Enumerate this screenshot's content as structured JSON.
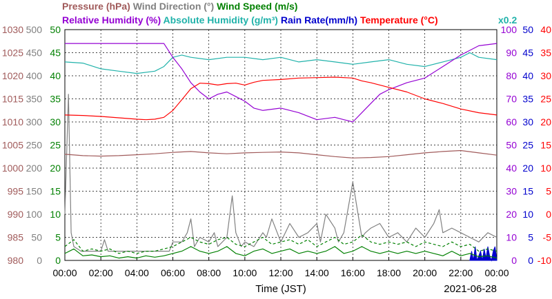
{
  "chart_data": {
    "type": "line",
    "title_parts": [
      {
        "text": "Pressure (hPa)",
        "color": "#a05a5a"
      },
      {
        "text": "Wind Direction (°)",
        "color": "#808080"
      },
      {
        "text": "Wind Speed (m/s)",
        "color": "#008000"
      }
    ],
    "title_parts_2": [
      {
        "text": "Relative Humidity (%)",
        "color": "#9400d3"
      },
      {
        "text": "Absolute Humidity (g/m³)",
        "color": "#20b2aa"
      },
      {
        "text": "Rain Rate(mm/h)",
        "color": "#0000cd"
      },
      {
        "text": "Temperature (°C)",
        "color": "#ff0000"
      }
    ],
    "corner_note": {
      "text": "x0.2",
      "color": "#20b2aa"
    },
    "xlabel": "Time (JST)",
    "date": "2021-06-28",
    "x_ticks": [
      "00:00",
      "02:00",
      "04:00",
      "06:00",
      "08:00",
      "10:00",
      "12:00",
      "14:00",
      "16:00",
      "18:00",
      "20:00",
      "22:00",
      "00:00"
    ],
    "xlim_hours": [
      0,
      24
    ],
    "grid": true,
    "left_axes": [
      {
        "name": "Pressure",
        "color": "#a05a5a",
        "ticks": [
          "1030",
          "1025",
          "1020",
          "1015",
          "1010",
          "1005",
          "1000",
          "995",
          "990",
          "985",
          "980"
        ]
      },
      {
        "name": "Wind Direction",
        "color": "#808080",
        "ticks": [
          "500",
          "450",
          "400",
          "350",
          "300",
          "250",
          "200",
          "150",
          "100",
          "50",
          "0"
        ]
      },
      {
        "name": "Wind Speed",
        "color": "#008000",
        "ticks": [
          "50",
          "45",
          "40",
          "35",
          "30",
          "25",
          "20",
          "15",
          "10",
          "5",
          "0"
        ]
      }
    ],
    "right_axes": [
      {
        "name": "Relative Humidity",
        "color": "#9400d3",
        "ticks": [
          "100",
          "90",
          "80",
          "70",
          "60",
          "50",
          "40",
          "30",
          "20",
          "10",
          "0"
        ]
      },
      {
        "name": "Rain Rate",
        "color": "#0000cd",
        "ticks": [
          "50",
          "45",
          "40",
          "35",
          "30",
          "25",
          "20",
          "15",
          "10",
          "5",
          "0"
        ]
      },
      {
        "name": "Temperature",
        "color": "#ff0000",
        "ticks": [
          "40",
          "35",
          "30",
          "25",
          "20",
          "15",
          "10",
          "5",
          "0",
          "-5",
          "-10"
        ]
      }
    ],
    "series": [
      {
        "name": "Temperature",
        "color": "#ff0000",
        "axis": "temperature_c",
        "x": [
          0,
          1,
          2,
          3,
          4,
          4.5,
          5,
          5.5,
          6,
          6.5,
          7,
          7.5,
          8,
          8.5,
          9,
          9.5,
          10,
          10.5,
          11,
          12,
          13,
          14,
          15,
          16,
          16.5,
          17,
          18,
          19,
          20,
          21,
          22,
          23,
          24
        ],
        "y": [
          21.5,
          21.4,
          21.2,
          20.9,
          20.6,
          20.5,
          20.6,
          21,
          22.5,
          24.8,
          27.2,
          28.4,
          28.3,
          28,
          28.3,
          28.4,
          28,
          28.6,
          29,
          29.2,
          29.5,
          29.6,
          29.7,
          29.5,
          28.9,
          28.5,
          27.5,
          26.5,
          25,
          24,
          22.8,
          22,
          21.5
        ]
      },
      {
        "name": "Relative Humidity",
        "color": "#9400d3",
        "axis": "rh_pct",
        "x": [
          0,
          1,
          2,
          3,
          4,
          5,
          5.5,
          6,
          6.5,
          7,
          7.5,
          8,
          8.5,
          9,
          9.5,
          10,
          10.5,
          11,
          12,
          13,
          14,
          15,
          15.5,
          16,
          16.5,
          17,
          17.5,
          18,
          19,
          20,
          21,
          22,
          23,
          24
        ],
        "y": [
          94,
          94,
          94,
          94,
          94,
          94,
          94,
          88,
          83,
          77,
          73,
          70,
          72,
          73,
          71,
          69,
          66,
          65,
          66,
          64,
          61,
          62,
          61,
          60,
          64,
          68,
          72,
          74,
          77,
          79,
          84,
          89,
          93,
          94
        ]
      },
      {
        "name": "Absolute Humidity",
        "color": "#20b2aa",
        "axis": "ah_scaled",
        "x": [
          0,
          1,
          2,
          3,
          4,
          5,
          5.5,
          6,
          6.5,
          7,
          8,
          9,
          10,
          11,
          12,
          13,
          14,
          15,
          16,
          17,
          18,
          19,
          20,
          21,
          22,
          22.5,
          23,
          24
        ],
        "y": [
          86,
          85.5,
          83,
          82,
          81,
          82,
          84,
          88,
          89,
          88,
          87,
          88,
          88,
          87,
          88,
          86,
          87,
          86,
          85,
          86,
          87,
          85,
          84,
          86,
          88,
          90,
          88,
          87
        ]
      },
      {
        "name": "Pressure",
        "color": "#a05a5a",
        "axis": "pressure_hpa",
        "x": [
          0,
          1,
          2,
          3,
          4,
          5,
          6,
          7,
          8,
          9,
          10,
          11,
          12,
          13,
          14,
          15,
          16,
          17,
          18,
          19,
          20,
          21,
          22,
          23,
          24
        ],
        "y": [
          1003,
          1002.7,
          1002.6,
          1002.7,
          1002.9,
          1003.1,
          1003.4,
          1003.6,
          1003.3,
          1003.1,
          1003.3,
          1003.4,
          1003.5,
          1003.3,
          1002.9,
          1002.5,
          1002.2,
          1002.3,
          1002.5,
          1002.9,
          1003.3,
          1003.6,
          1003.8,
          1003.3,
          1002.8
        ]
      },
      {
        "name": "Wind Direction",
        "color": "#808080",
        "axis": "wind_dir_deg",
        "x": [
          0,
          0.2,
          0.35,
          0.5,
          0.9,
          1,
          1.5,
          2,
          2.2,
          2.4,
          2.6,
          4,
          5,
          5.5,
          5.8,
          6,
          6.5,
          6.8,
          7,
          7.2,
          7.5,
          8,
          8.3,
          8.5,
          9,
          9.3,
          9.5,
          9.8,
          10,
          10.5,
          11,
          11.2,
          11.5,
          12,
          12.5,
          13,
          13.5,
          14,
          14.2,
          14.5,
          15,
          15.2,
          15.5,
          16,
          16.5,
          16.7,
          17,
          17.5,
          18,
          18.5,
          19,
          19.5,
          20,
          20.5,
          20.8,
          21,
          21.5,
          22,
          22.5,
          23,
          23.5,
          24
        ],
        "y": [
          100,
          360,
          60,
          30,
          20,
          20,
          20,
          20,
          45,
          20,
          20,
          20,
          20,
          20,
          20,
          40,
          40,
          60,
          90,
          30,
          50,
          40,
          60,
          30,
          50,
          140,
          60,
          30,
          40,
          30,
          60,
          50,
          90,
          40,
          80,
          50,
          60,
          80,
          40,
          100,
          70,
          40,
          60,
          170,
          50,
          60,
          70,
          80,
          50,
          60,
          40,
          70,
          50,
          80,
          110,
          60,
          70,
          60,
          50,
          40,
          60,
          50
        ]
      },
      {
        "name": "Wind Speed",
        "color": "#008000",
        "axis": "wind_speed_ms",
        "x": [
          0,
          0.5,
          1,
          1.5,
          2,
          2.5,
          3,
          3.5,
          4,
          4.5,
          5,
          5.5,
          6,
          6.5,
          7,
          7.5,
          8,
          8.5,
          9,
          9.5,
          10,
          10.5,
          11,
          11.5,
          12,
          12.5,
          13,
          13.5,
          14,
          14.5,
          15,
          15.5,
          16,
          16.5,
          17,
          17.5,
          18,
          18.5,
          19,
          19.5,
          20,
          20.5,
          21,
          21.5,
          22,
          22.5,
          23,
          23.5,
          24
        ],
        "y": [
          1.5,
          2.5,
          1,
          1.2,
          0.8,
          1,
          0.5,
          0.8,
          0.5,
          1,
          0.7,
          1,
          1.5,
          2,
          3,
          2,
          1.5,
          2,
          3,
          1.5,
          1,
          2,
          2.5,
          1.5,
          2,
          2.5,
          1.5,
          2,
          1.5,
          2,
          3,
          1.5,
          2,
          3,
          2,
          1.5,
          2,
          1.5,
          2,
          1.5,
          2,
          1.5,
          1,
          2,
          1,
          1.5,
          0.8,
          1,
          0.5
        ]
      },
      {
        "name": "Wind Speed (gust)",
        "color": "#008000",
        "axis": "wind_speed_ms",
        "dashed": true,
        "x": [
          0,
          0.5,
          1,
          1.5,
          2,
          2.5,
          3,
          3.5,
          4,
          4.5,
          5,
          5.5,
          6,
          6.5,
          7,
          7.5,
          8,
          8.5,
          9,
          9.5,
          10,
          10.5,
          11,
          11.5,
          12,
          12.5,
          13,
          13.5,
          14,
          14.5,
          15,
          15.5,
          16,
          16.5,
          17,
          17.5,
          18,
          18.5,
          19,
          19.5,
          20,
          20.5,
          21,
          21.5,
          22,
          22.5,
          23,
          23.5,
          24
        ],
        "y": [
          3,
          4.5,
          2,
          2.5,
          2,
          2.5,
          1.5,
          2,
          1.5,
          2,
          2,
          2.5,
          3,
          4,
          5,
          4,
          3.5,
          4.5,
          5,
          3.5,
          3,
          4,
          5,
          3.5,
          4,
          4.5,
          3.5,
          4.5,
          3,
          4,
          5,
          3.5,
          4,
          5.5,
          4,
          3.5,
          4,
          3.5,
          4,
          3,
          4,
          3.5,
          3,
          4,
          3,
          3.5,
          2,
          2.5,
          2
        ]
      },
      {
        "name": "Rain Rate",
        "color": "#0000cd",
        "axis": "rain_mmh",
        "type": "area",
        "x": [
          22.5,
          22.6,
          22.7,
          22.8,
          22.9,
          23,
          23.1,
          23.2,
          23.3,
          23.4,
          23.5,
          23.6,
          23.7,
          23.8,
          23.9,
          24
        ],
        "y": [
          0,
          2,
          0,
          3,
          0,
          1,
          2,
          0,
          2.5,
          0.5,
          3,
          1,
          0,
          2,
          3,
          0
        ]
      }
    ],
    "axis_ranges": {
      "temperature_c": [
        -10,
        40
      ],
      "rh_pct": [
        0,
        100
      ],
      "ah_scaled": [
        0,
        100
      ],
      "pressure_hpa": [
        980,
        1030
      ],
      "wind_dir_deg": [
        0,
        500
      ],
      "wind_speed_ms": [
        0,
        50
      ],
      "rain_mmh": [
        0,
        50
      ]
    }
  }
}
